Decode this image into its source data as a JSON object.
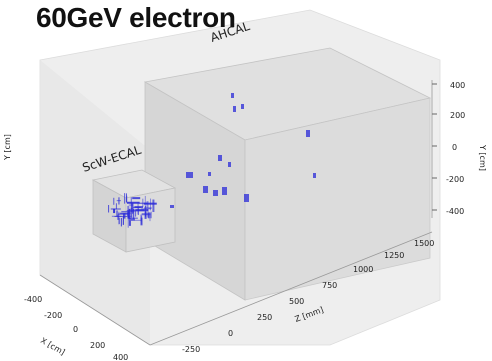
{
  "chart_data": {
    "type": "scatter",
    "title": "60GeV electron",
    "detector_labels": [
      "ScW-ECAL",
      "AHCAL"
    ],
    "axes": {
      "x": {
        "label": "X [cm]",
        "ticks": [
          "-400",
          "-200",
          "0",
          "200",
          "400"
        ]
      },
      "z": {
        "label": "Z [mm]",
        "ticks": [
          "-250",
          "0",
          "250",
          "500",
          "750",
          "1000",
          "1250",
          "1500"
        ]
      },
      "y": {
        "label": "Y [cm]",
        "ticks": [
          "400",
          "200",
          "0",
          "-200",
          "-400"
        ]
      },
      "y_left_label": "Y [cm]"
    },
    "grid": false,
    "colors": {
      "hits": "#2a2ad8",
      "box_fill": "#d9d9d9",
      "box_edge": "#b8b8b8"
    }
  }
}
